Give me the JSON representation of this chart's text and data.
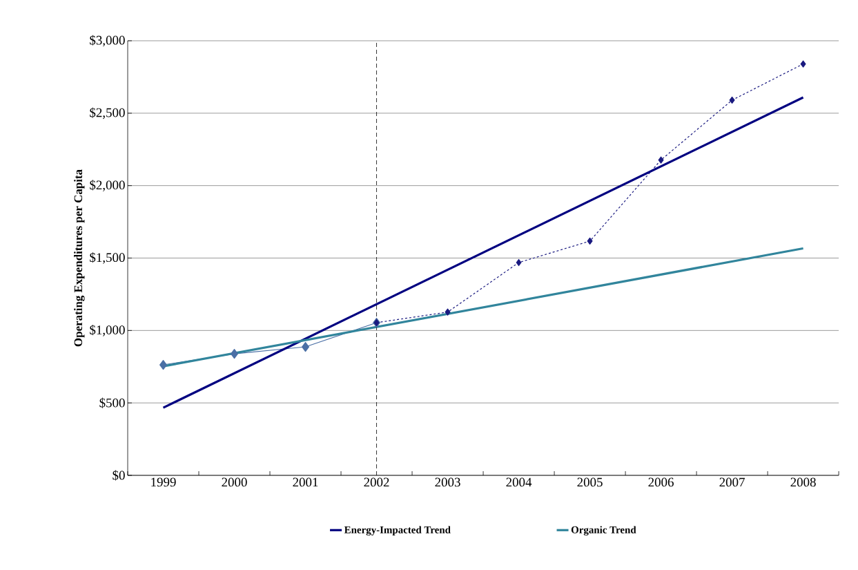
{
  "chart_data": {
    "type": "line",
    "ylabel": "Operating Expenditures per Capita",
    "categories": [
      "1999",
      "2000",
      "2001",
      "2002",
      "2003",
      "2004",
      "2005",
      "2006",
      "2007",
      "2008"
    ],
    "series": [
      {
        "color": "#4a6fa5",
        "values": [
          763,
          839,
          887,
          1054,
          null,
          null,
          null,
          null,
          null,
          null
        ],
        "marker": "diamond",
        "line_style": "solid"
      },
      {
        "color": "#1a1a80",
        "values": [
          null,
          null,
          null,
          1054,
          1127,
          1469,
          1617,
          2177,
          2590,
          2840
        ],
        "marker": "diamond",
        "line_style": "dashed"
      },
      {
        "name": "Energy-Impacted Trend",
        "color": "#000080",
        "values": [
          467,
          null,
          null,
          null,
          null,
          null,
          null,
          null,
          null,
          2609
        ],
        "marker": "none",
        "line_style": "solid"
      },
      {
        "name": "Organic Trend",
        "color": "#31859c",
        "values": [
          753,
          null,
          null,
          null,
          null,
          null,
          null,
          null,
          null,
          1567
        ],
        "marker": "none",
        "line_style": "solid"
      }
    ],
    "ylim": [
      0,
      3000
    ],
    "yticks": [
      {
        "value": 0,
        "label": "$0"
      },
      {
        "value": 500,
        "label": "$500"
      },
      {
        "value": 1000,
        "label": "$1,000"
      },
      {
        "value": 1500,
        "label": "$1,500"
      },
      {
        "value": 2000,
        "label": "$2,000"
      },
      {
        "value": 2500,
        "label": "$2,500"
      },
      {
        "value": 3000,
        "label": "$3,000"
      }
    ],
    "ref_lines": [
      {
        "axis": "x",
        "value": "2002",
        "color": "#000000",
        "line_style": "dashed"
      }
    ],
    "grid": "y",
    "legend": "bottom"
  }
}
